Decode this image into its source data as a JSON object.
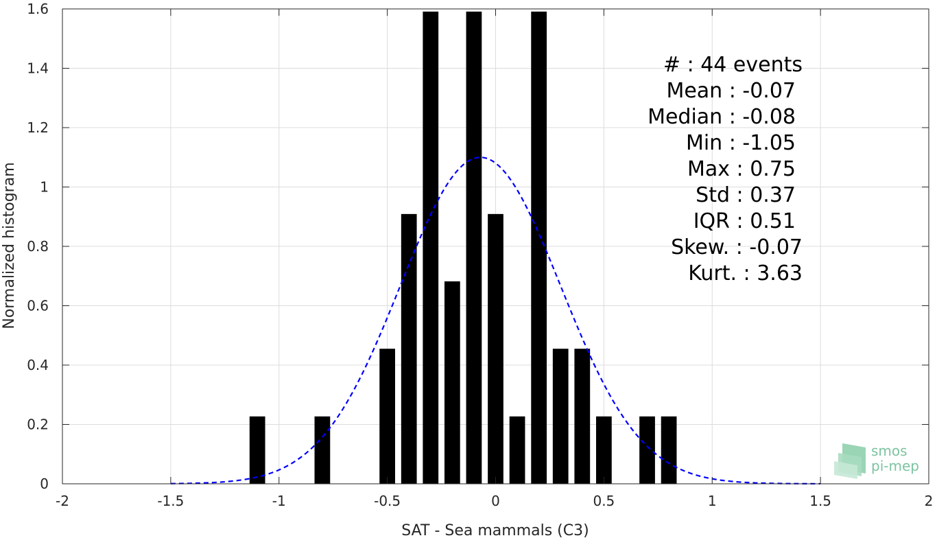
{
  "chart_data": {
    "type": "bar",
    "xlabel": "SAT - Sea mammals (C3)",
    "ylabel": "Normalized histogram",
    "xlim": [
      -2,
      2
    ],
    "ylim": [
      0,
      1.6
    ],
    "xticks": [
      "-2",
      "-1.5",
      "-1",
      "-0.5",
      "0",
      "0.5",
      "1",
      "1.5",
      "2"
    ],
    "yticks": [
      "0",
      "0.2",
      "0.4",
      "0.6",
      "0.8",
      "1",
      "1.2",
      "1.4",
      "1.6"
    ],
    "grid": true,
    "bar_color": "#000000",
    "bars": {
      "x": [
        -1.1,
        -0.8,
        -0.5,
        -0.4,
        -0.3,
        -0.2,
        -0.1,
        0.0,
        0.1,
        0.2,
        0.3,
        0.4,
        0.5,
        0.7,
        0.8
      ],
      "values": [
        0.227,
        0.227,
        0.455,
        0.909,
        1.591,
        0.682,
        1.591,
        0.909,
        0.227,
        1.591,
        0.455,
        0.455,
        0.227,
        0.227,
        0.227
      ]
    },
    "fit_curve": {
      "style": "dashed",
      "color": "#0000ff",
      "mean": -0.07,
      "std": 0.37,
      "peak": 1.1,
      "x_range": [
        -1.5,
        1.5
      ]
    },
    "stats_lines": [
      "#  : 44 events",
      "Mean : -0.07",
      "Median : -0.08",
      "Min : -1.05",
      "Max : 0.75",
      "Std : 0.37",
      "IQR : 0.51",
      "Skew. : -0.07",
      "Kurt. : 3.63"
    ]
  },
  "logo": {
    "line1": "smos",
    "line2": "pi-mep",
    "color": "#7cc4a0"
  }
}
